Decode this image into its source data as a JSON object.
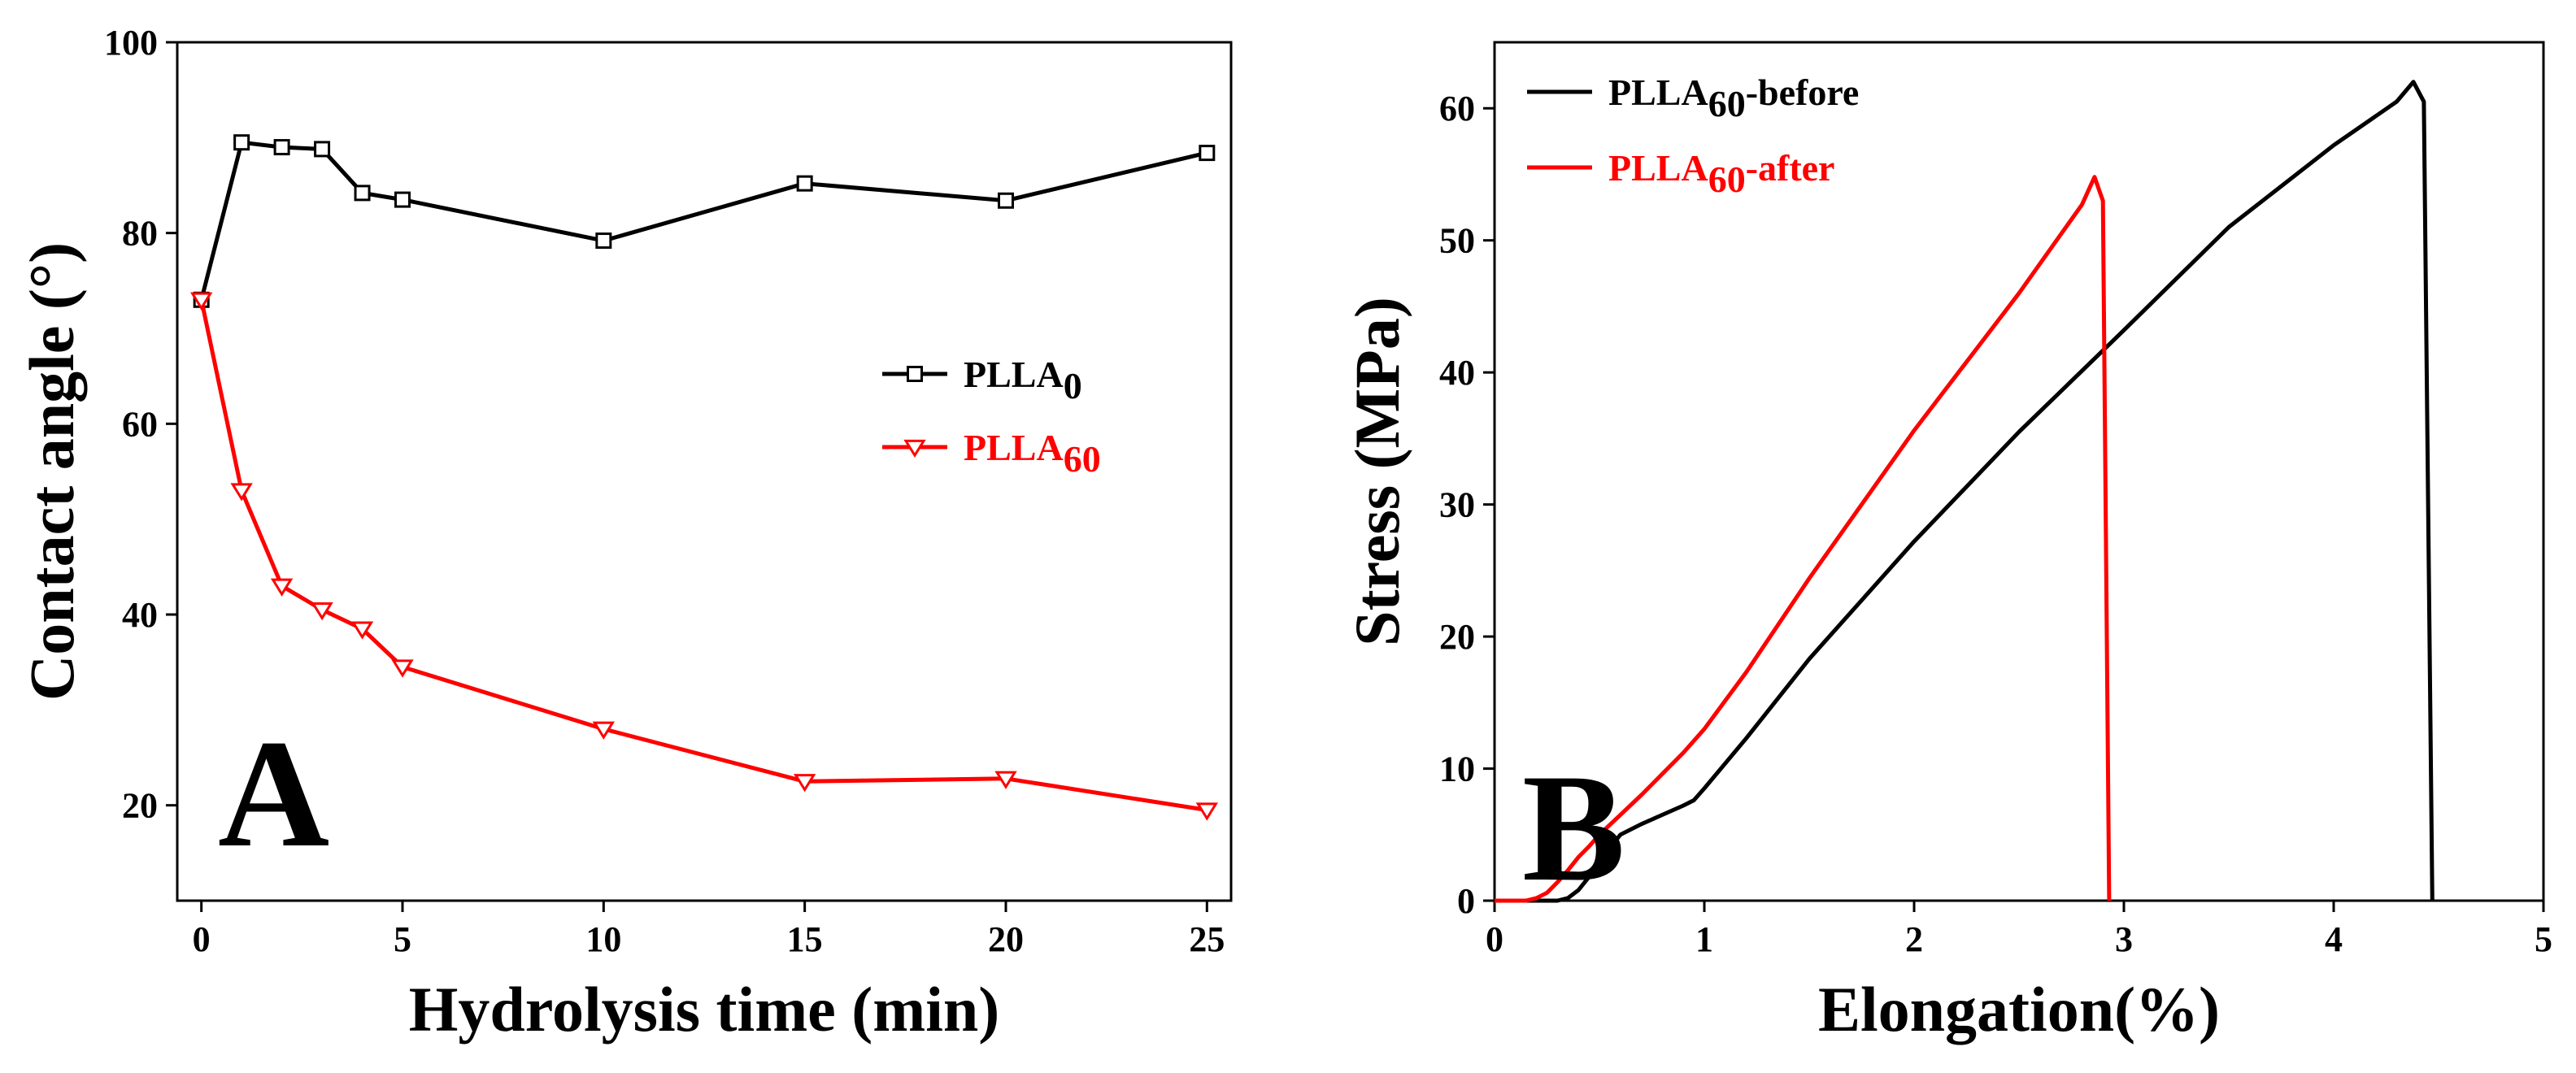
{
  "chart_data": [
    {
      "id": "A",
      "type": "line",
      "panel_label": "A",
      "xlabel": "Hydrolysis time (min)",
      "ylabel": "Contact angle (°)",
      "xlim": [
        -0.6,
        25.6
      ],
      "ylim": [
        10,
        100
      ],
      "xticks": [
        0,
        5,
        10,
        15,
        20,
        25
      ],
      "yticks": [
        20,
        40,
        60,
        80,
        100
      ],
      "legend_position": "center-right",
      "series": [
        {
          "name": "PLLA",
          "subscript": "0",
          "color": "#000000",
          "marker": "square",
          "x": [
            0,
            1,
            2,
            3,
            4,
            5,
            10,
            15,
            20,
            25
          ],
          "y": [
            73,
            89.5,
            89,
            88.8,
            84.2,
            83.5,
            79.2,
            85.2,
            83.4,
            88.4
          ]
        },
        {
          "name": "PLLA",
          "subscript": "60",
          "color": "#ff0000",
          "marker": "triangle-down",
          "x": [
            0,
            1,
            2,
            3,
            4,
            5,
            10,
            15,
            20,
            25
          ],
          "y": [
            73,
            53,
            43,
            40.5,
            38.5,
            34.5,
            28,
            22.5,
            22.8,
            19.5
          ]
        }
      ]
    },
    {
      "id": "B",
      "type": "line",
      "panel_label": "B",
      "xlabel": "Elongation(%)",
      "ylabel": "Stress (MPa)",
      "xlim": [
        0,
        5
      ],
      "ylim": [
        0,
        65
      ],
      "xticks": [
        0,
        1,
        2,
        3,
        4,
        5
      ],
      "yticks": [
        0,
        10,
        20,
        30,
        40,
        50,
        60
      ],
      "legend_position": "top-left",
      "series": [
        {
          "name": "PLLA",
          "subscript": "60",
          "suffix": "-before",
          "color": "#000000",
          "x": [
            0,
            0.3,
            0.35,
            0.4,
            0.45,
            0.5,
            0.55,
            0.6,
            0.7,
            0.8,
            0.9,
            0.95,
            1.0,
            1.2,
            1.5,
            2.0,
            2.5,
            3.0,
            3.5,
            4.0,
            4.3,
            4.38,
            4.43,
            4.47
          ],
          "y": [
            0,
            0,
            0.2,
            0.8,
            1.8,
            3,
            4,
            5,
            5.8,
            6.5,
            7.2,
            7.6,
            8.5,
            12.3,
            18.3,
            27.2,
            35.5,
            43.2,
            51,
            57.2,
            60.5,
            62,
            60.5,
            0
          ]
        },
        {
          "name": "PLLA",
          "subscript": "60",
          "suffix": "-after",
          "color": "#ff0000",
          "x": [
            0,
            0.15,
            0.2,
            0.25,
            0.3,
            0.35,
            0.4,
            0.45,
            0.5,
            0.6,
            0.7,
            0.8,
            0.9,
            1.0,
            1.2,
            1.5,
            2.0,
            2.5,
            2.8,
            2.86,
            2.9,
            2.93
          ],
          "y": [
            0,
            0,
            0.2,
            0.6,
            1.4,
            2.3,
            3.3,
            4.1,
            5,
            6.5,
            8,
            9.6,
            11.2,
            13,
            17.3,
            24.4,
            35.6,
            46,
            52.7,
            54.8,
            53,
            0
          ]
        }
      ]
    }
  ]
}
